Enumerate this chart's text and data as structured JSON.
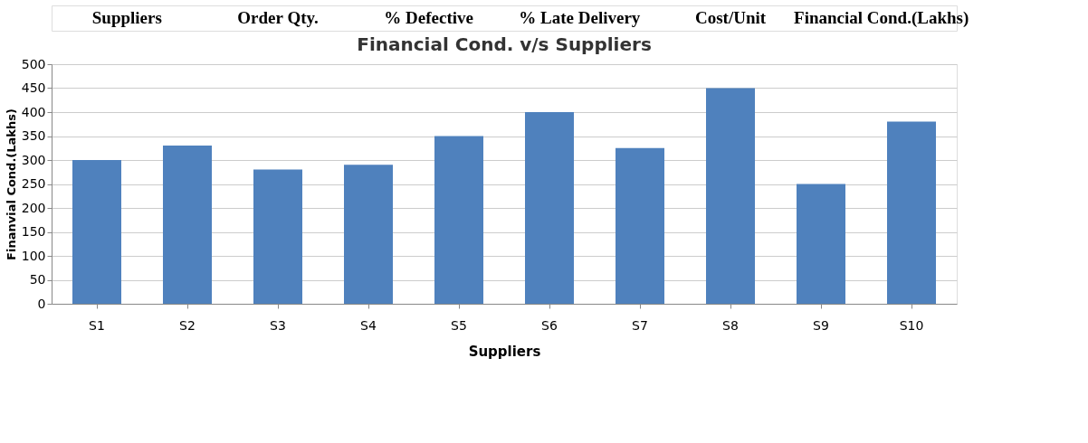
{
  "chart_data": {
    "type": "bar",
    "title": "Financial Cond. v/s Suppliers",
    "xlabel": "Suppliers",
    "ylabel": "Finanvial Cond.(Lakhs)",
    "categories": [
      "S1",
      "S2",
      "S3",
      "S4",
      "S5",
      "S6",
      "S7",
      "S8",
      "S9",
      "S10"
    ],
    "values": [
      300,
      330,
      280,
      290,
      350,
      400,
      325,
      450,
      250,
      380
    ],
    "color": "#4f81bd",
    "ylim": [
      0,
      500
    ],
    "yticks": [
      0,
      50,
      100,
      150,
      200,
      250,
      300,
      350,
      400,
      450,
      500
    ],
    "grid": "y",
    "annotations": [
      "Suppliers",
      "Order Qty.",
      "% Defective",
      "% Late Delivery",
      "Cost/Unit",
      "Financial Cond.(Lakhs)"
    ]
  }
}
